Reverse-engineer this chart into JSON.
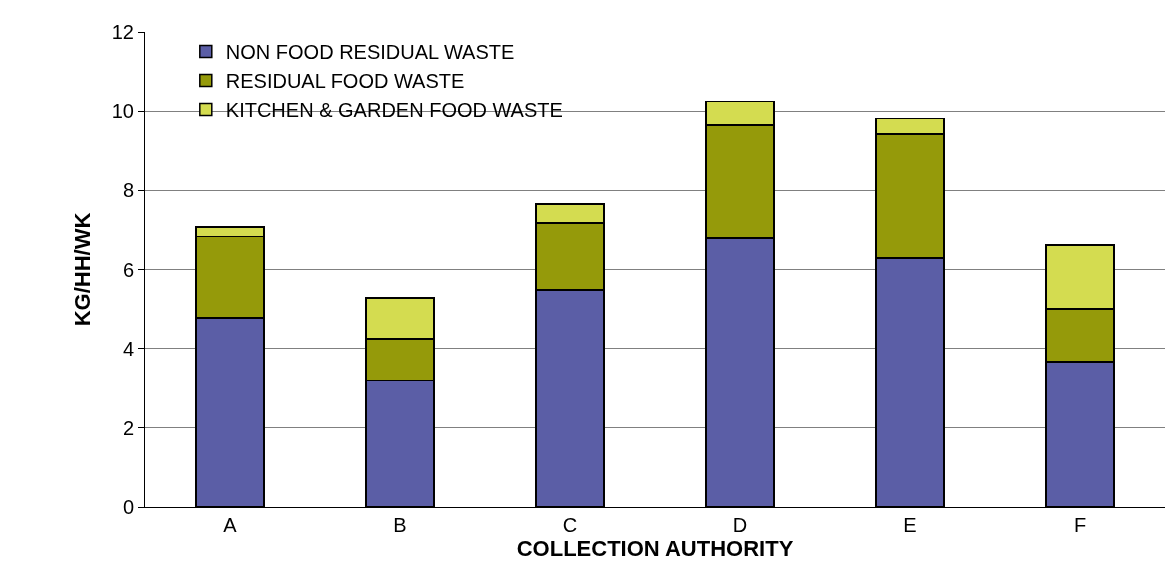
{
  "chart_data": {
    "type": "bar",
    "stacked": true,
    "xlabel": "COLLECTION AUTHORITY",
    "ylabel": "KG/HH/WK",
    "categories": [
      "A",
      "B",
      "C",
      "D",
      "E",
      "F"
    ],
    "series": [
      {
        "name": "NON FOOD RESIDUAL WASTE",
        "color": "#5b5ea6",
        "values": [
          4.77,
          3.2,
          5.48,
          6.79,
          6.29,
          3.66
        ]
      },
      {
        "name": "RESIDUAL FOOD WASTE",
        "color": "#959a0a",
        "values": [
          2.07,
          1.04,
          1.69,
          2.86,
          3.13,
          1.34
        ]
      },
      {
        "name": "KITCHEN & GARDEN FOOD WASTE",
        "color": "#d4dc50",
        "values": [
          0.23,
          1.04,
          0.48,
          0.6,
          0.4,
          1.62
        ]
      }
    ],
    "ylim": [
      0,
      12
    ],
    "yticks": [
      0,
      2,
      4,
      6,
      8,
      10,
      12
    ],
    "grid": "y",
    "legend": "top left"
  }
}
